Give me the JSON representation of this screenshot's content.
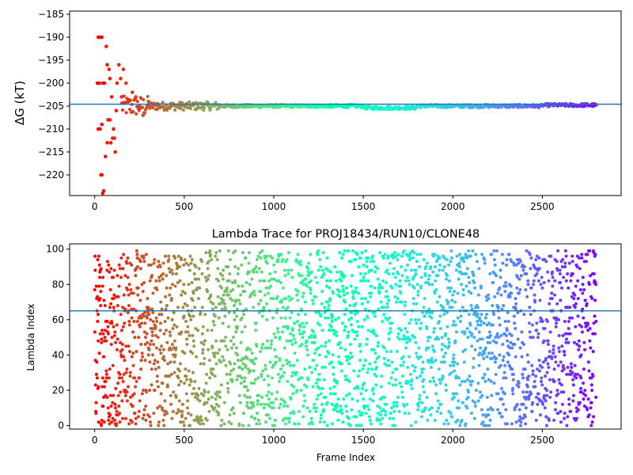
{
  "chart_data": [
    {
      "type": "scatter",
      "title": "",
      "xlabel": "",
      "ylabel": "ΔG (kT)",
      "xlim": [
        -140,
        2940
      ],
      "ylim": [
        -224.5,
        -184.3
      ],
      "xticks": [
        0,
        500,
        1000,
        1500,
        2000,
        2500
      ],
      "yticks": [
        -185,
        -190,
        -195,
        -200,
        -205,
        -210,
        -215,
        -220
      ],
      "hline": -204.6,
      "colormap": "rainbow",
      "n_frames": 2800,
      "series": [
        {
          "values_summary": "Free-energy estimate per frame; widely scattered (-224 to -190) in the first ~150 frames, converging to about -205 after frame ~400 and staying near -205 through frame 2800.",
          "points": [
            [
              20,
              -190
            ],
            [
              30,
              -190
            ],
            [
              40,
              -190
            ],
            [
              15,
              -200
            ],
            [
              25,
              -200
            ],
            [
              45,
              -200
            ],
            [
              55,
              -200
            ],
            [
              20,
              -210
            ],
            [
              30,
              -210
            ],
            [
              40,
              -209
            ],
            [
              35,
              -220
            ],
            [
              40,
              -220
            ],
            [
              45,
              -224
            ],
            [
              50,
              -223.5
            ],
            [
              60,
              -216
            ],
            [
              70,
              -213
            ],
            [
              75,
              -208
            ],
            [
              85,
              -208
            ],
            [
              90,
              -213
            ],
            [
              65,
              -192
            ],
            [
              70,
              -196
            ],
            [
              80,
              -197
            ],
            [
              85,
              -199
            ],
            [
              95,
              -203
            ],
            [
              100,
              -212
            ],
            [
              105,
              -210
            ],
            [
              110,
              -212
            ],
            [
              115,
              -215
            ],
            [
              120,
              -206
            ],
            [
              125,
              -200
            ],
            [
              135,
              -196
            ],
            [
              145,
              -199
            ],
            [
              150,
              -203
            ],
            [
              160,
              -197
            ],
            [
              175,
              -200
            ],
            [
              190,
              -204
            ],
            [
              210,
              -202
            ],
            [
              230,
              -203
            ],
            [
              250,
              -205
            ],
            [
              270,
              -207
            ],
            [
              300,
              -204
            ],
            [
              350,
              -204.5
            ],
            [
              400,
              -205.5
            ],
            [
              450,
              -205
            ],
            [
              500,
              -205
            ],
            [
              600,
              -204.5
            ],
            [
              700,
              -205
            ],
            [
              800,
              -205.2
            ],
            [
              1000,
              -205
            ],
            [
              1200,
              -205.1
            ],
            [
              1500,
              -205.3
            ],
            [
              1650,
              -205.6
            ],
            [
              1800,
              -205.2
            ],
            [
              2000,
              -205
            ],
            [
              2200,
              -205.1
            ],
            [
              2400,
              -205
            ],
            [
              2600,
              -204.8
            ],
            [
              2800,
              -204.7
            ]
          ]
        }
      ]
    },
    {
      "type": "scatter",
      "title": "Lambda Trace for PROJ18434/RUN10/CLONE48",
      "xlabel": "Frame Index",
      "ylabel": "Lambda Index",
      "xlim": [
        -140,
        2940
      ],
      "ylim": [
        -2,
        103
      ],
      "xticks": [
        0,
        500,
        1000,
        1500,
        2000,
        2500
      ],
      "yticks": [
        0,
        20,
        40,
        60,
        80,
        100
      ],
      "hline": 65,
      "colormap": "rainbow",
      "n_frames": 2800,
      "series": [
        {
          "values_summary": "Lambda index (0–99) sampled every frame from 0 to 2800; points spread nearly uniformly across 0–99 with color running red→violet by frame.",
          "range": [
            0,
            99
          ]
        }
      ]
    }
  ]
}
